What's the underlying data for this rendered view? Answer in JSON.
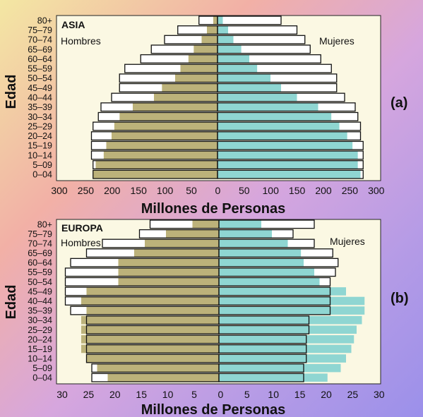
{
  "chart_data": [
    {
      "type": "bar",
      "panel_label": "(a)",
      "title": "ASIA",
      "left_label": "Hombres",
      "right_label": "Mujeres",
      "ylabel": "Edad",
      "xlabel": "Millones de Personas",
      "xlim": [
        -300,
        300
      ],
      "x_ticks": [
        "300",
        "250",
        "200",
        "150",
        "100",
        "50",
        "0",
        "50",
        "100",
        "150",
        "200",
        "250",
        "300"
      ],
      "categories": [
        "0–04",
        "5–09",
        "10–14",
        "15–19",
        "20–24",
        "25–29",
        "30–34",
        "35–39",
        "40–44",
        "45–49",
        "50–54",
        "55–59",
        "60–64",
        "65–69",
        "70–74",
        "75–79",
        "80+"
      ],
      "series": [
        {
          "name": "Hombres",
          "group": "outline",
          "values": [
            235,
            235,
            238,
            238,
            238,
            235,
            225,
            220,
            200,
            185,
            185,
            175,
            145,
            125,
            100,
            75,
            35
          ]
        },
        {
          "name": "Mujeres",
          "group": "outline",
          "values": [
            275,
            275,
            275,
            275,
            270,
            270,
            265,
            260,
            240,
            225,
            225,
            215,
            195,
            175,
            165,
            150,
            120
          ]
        },
        {
          "name": "Hombres",
          "group": "shaded",
          "values": [
            235,
            230,
            215,
            210,
            200,
            195,
            185,
            160,
            120,
            105,
            80,
            70,
            55,
            45,
            30,
            20,
            8
          ]
        },
        {
          "name": "Mujeres",
          "group": "shaded",
          "values": [
            270,
            265,
            265,
            255,
            245,
            230,
            215,
            190,
            150,
            120,
            100,
            75,
            60,
            45,
            30,
            20,
            10
          ]
        }
      ]
    },
    {
      "type": "bar",
      "panel_label": "(b)",
      "title": "EUROPA",
      "left_label": "Hombres",
      "right_label": "Mujeres",
      "ylabel": "Edad",
      "xlabel": "Millones de Personas",
      "xlim": [
        -30,
        30
      ],
      "x_ticks": [
        "30",
        "25",
        "20",
        "15",
        "10",
        "5",
        "0",
        "5",
        "10",
        "15",
        "20",
        "25",
        "30"
      ],
      "categories": [
        "0–04",
        "5–09",
        "10–14",
        "15–19",
        "20–24",
        "25–29",
        "30–34",
        "35–39",
        "40–44",
        "45–49",
        "50–54",
        "55–59",
        "60–64",
        "65–69",
        "70–74",
        "75–79",
        "80+"
      ],
      "series": [
        {
          "name": "Hombres",
          "group": "outline",
          "values": [
            24,
            24,
            25,
            25,
            25,
            25,
            25,
            28,
            29,
            29,
            29,
            29,
            28,
            25,
            22,
            15,
            13
          ]
        },
        {
          "name": "Mujeres",
          "group": "outline",
          "values": [
            16,
            16,
            16.5,
            16.5,
            16.5,
            17,
            17,
            21,
            21,
            21,
            21,
            22,
            22.5,
            21.5,
            18,
            14,
            18
          ]
        },
        {
          "name": "Hombres",
          "group": "shaded",
          "values": [
            21,
            23,
            25,
            26,
            26,
            26,
            26,
            25,
            26,
            25,
            19,
            19,
            19,
            16,
            14,
            10,
            5
          ]
        },
        {
          "name": "Mujeres",
          "group": "shaded",
          "values": [
            20.5,
            23,
            24,
            25,
            25.5,
            26,
            27,
            27.5,
            27.5,
            24,
            19,
            18,
            16,
            15.5,
            13,
            10,
            8
          ]
        }
      ]
    }
  ]
}
